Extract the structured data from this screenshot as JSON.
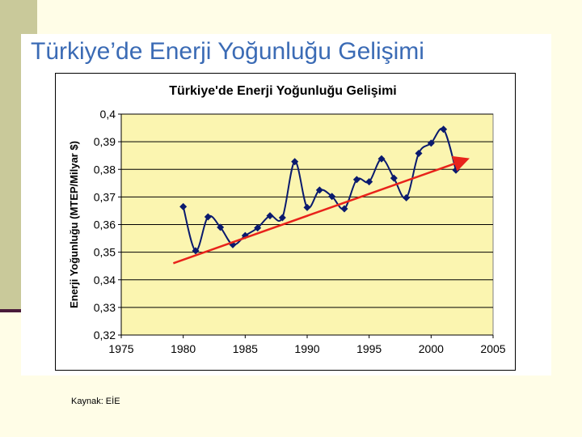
{
  "slide": {
    "title": "Türkiye’de Enerji Yoğunluğu Gelişimi",
    "source": "Kaynak: EİE"
  },
  "colors": {
    "plot_bg": "#FBF5B0",
    "series": "#0A1A6E",
    "trend": "#E8231B",
    "title": "#3B6BB5"
  },
  "chart_data": {
    "type": "line",
    "title": "Türkiye'de Enerji Yoğunluğu Gelişimi",
    "xlabel": "",
    "ylabel": "Enerji Yoğunluğu (MTEP/Milyar $)",
    "xlim": [
      1975,
      2005
    ],
    "ylim": [
      0.32,
      0.4
    ],
    "xticks": [
      1975,
      1980,
      1985,
      1990,
      1995,
      2000,
      2005
    ],
    "xtick_labels": [
      "1975",
      "1980",
      "1985",
      "1990",
      "1995",
      "2000",
      "2005"
    ],
    "yticks": [
      0.32,
      0.33,
      0.34,
      0.35,
      0.36,
      0.37,
      0.38,
      0.39,
      0.4
    ],
    "ytick_labels": [
      "0,32",
      "0,33",
      "0,34",
      "0,35",
      "0,36",
      "0,37",
      "0,38",
      "0,39",
      "0,4"
    ],
    "grid": "horizontal",
    "series": [
      {
        "x": [
          1980,
          1981,
          1982,
          1983,
          1984,
          1985,
          1986,
          1987,
          1988,
          1989,
          1990,
          1991,
          1992,
          1993,
          1994,
          1995,
          1996,
          1997,
          1998,
          1999,
          2000,
          2001,
          2002
        ],
        "values": [
          0.3665,
          0.3505,
          0.3628,
          0.359,
          0.3527,
          0.356,
          0.3588,
          0.3632,
          0.3625,
          0.3828,
          0.3662,
          0.3725,
          0.3702,
          0.3657,
          0.3763,
          0.3755,
          0.3838,
          0.3768,
          0.3697,
          0.3858,
          0.3895,
          0.3945,
          0.3797
        ]
      }
    ],
    "trend_line": {
      "x": [
        1979.2,
        2002.8
      ],
      "values": [
        0.346,
        0.3835
      ]
    }
  }
}
